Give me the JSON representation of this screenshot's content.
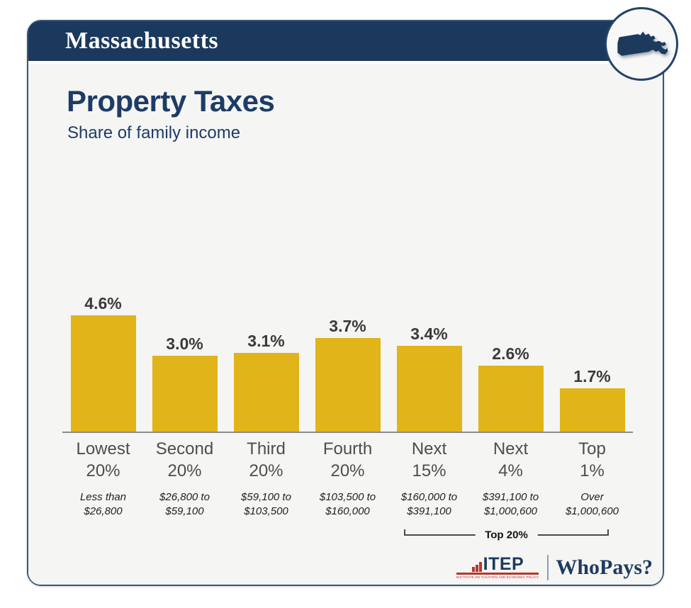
{
  "header": {
    "state_name": "Massachusetts"
  },
  "title": "Property Taxes",
  "subtitle": "Share of family income",
  "chart_data": {
    "type": "bar",
    "title": "Property Taxes",
    "subtitle": "Share of family income",
    "categories": [
      "Lowest 20%",
      "Second 20%",
      "Third 20%",
      "Fourth 20%",
      "Next 15%",
      "Next 4%",
      "Top 1%"
    ],
    "category_lines": [
      [
        "Lowest",
        "20%"
      ],
      [
        "Second",
        "20%"
      ],
      [
        "Third",
        "20%"
      ],
      [
        "Fourth",
        "20%"
      ],
      [
        "Next",
        "15%"
      ],
      [
        "Next",
        "4%"
      ],
      [
        "Top",
        "1%"
      ]
    ],
    "values": [
      4.6,
      3.0,
      3.1,
      3.7,
      3.4,
      2.6,
      1.7
    ],
    "value_labels": [
      "4.6%",
      "3.0%",
      "3.1%",
      "3.7%",
      "3.4%",
      "2.6%",
      "1.7%"
    ],
    "income_ranges": [
      [
        "Less than",
        "$26,800"
      ],
      [
        "$26,800 to",
        "$59,100"
      ],
      [
        "$59,100 to",
        "$103,500"
      ],
      [
        "$103,500 to",
        "$160,000"
      ],
      [
        "$160,000 to",
        "$391,100"
      ],
      [
        "$391,100 to",
        "$1,000,600"
      ],
      [
        "Over",
        "$1,000,600"
      ]
    ],
    "annotation": "Top 20%",
    "annotation_span": [
      "Next 15%",
      "Top 1%"
    ],
    "ylim": [
      0,
      5
    ],
    "grid": false,
    "legend": false,
    "bar_color": "#e1b419"
  },
  "footer": {
    "itep_label": "ITEP",
    "itep_sub": "INSTITUTE ON TAXATION AND ECONOMIC POLICY",
    "whopays_label": "WhoPays?"
  },
  "colors": {
    "header_navy": "#1b395c",
    "title_navy": "#1d3c66",
    "bar_gold": "#e1b419",
    "itep_red": "#b5382d",
    "card_border": "#3a567a",
    "card_background": "#f5f5f4"
  }
}
